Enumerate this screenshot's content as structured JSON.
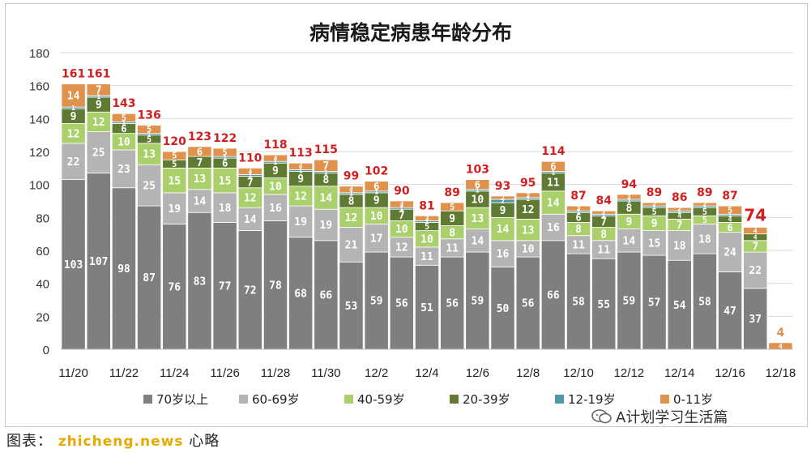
{
  "chart_data": {
    "type": "bar",
    "stacked": true,
    "title": "病情稳定病患年龄分布",
    "xlabel": "",
    "ylabel": "",
    "ylim": [
      0,
      180
    ],
    "yticks": [
      0,
      20,
      40,
      60,
      80,
      100,
      120,
      140,
      160,
      180
    ],
    "grid": true,
    "legend_position": "bottom",
    "highlight_last_total_color": "#d11f1f",
    "categories": [
      "11/20",
      "11/21",
      "11/22",
      "11/23",
      "11/24",
      "11/25",
      "11/26",
      "11/27",
      "11/28",
      "11/29",
      "11/30",
      "12/1",
      "12/2",
      "12/3",
      "12/4",
      "12/5",
      "12/6",
      "12/7",
      "12/8",
      "12/9",
      "12/10",
      "12/11",
      "12/12",
      "12/13",
      "12/14",
      "12/15",
      "12/16",
      "12/17",
      "12/18"
    ],
    "xtick_labels": [
      "11/20",
      "11/22",
      "11/24",
      "11/26",
      "11/28",
      "11/30",
      "12/2",
      "12/4",
      "12/6",
      "12/8",
      "12/10",
      "12/12",
      "12/14",
      "12/16",
      "12/18"
    ],
    "series": [
      {
        "name": "70岁以上",
        "color": "#7f7f7f",
        "label_color": "#ffffff",
        "values": [
          103,
          107,
          98,
          87,
          76,
          83,
          77,
          72,
          78,
          68,
          66,
          53,
          59,
          56,
          51,
          56,
          59,
          50,
          56,
          66,
          58,
          55,
          59,
          57,
          54,
          58,
          47,
          37,
          0
        ]
      },
      {
        "name": "60-69岁",
        "color": "#b4b4b4",
        "label_color": "#ffffff",
        "values": [
          22,
          25,
          23,
          25,
          19,
          14,
          18,
          14,
          16,
          19,
          19,
          21,
          17,
          12,
          11,
          11,
          14,
          16,
          10,
          16,
          11,
          11,
          14,
          15,
          18,
          18,
          24,
          22,
          0
        ]
      },
      {
        "name": "40-59岁",
        "color": "#a9d06b",
        "label_color": "#ffffff",
        "values": [
          12,
          12,
          10,
          13,
          15,
          13,
          15,
          12,
          10,
          12,
          14,
          12,
          10,
          10,
          10,
          8,
          13,
          14,
          13,
          14,
          8,
          8,
          9,
          9,
          7,
          5,
          6,
          7,
          0
        ]
      },
      {
        "name": "20-39岁",
        "color": "#5f7a32",
        "label_color": "#ffffff",
        "values": [
          9,
          9,
          6,
          5,
          5,
          7,
          6,
          7,
          9,
          9,
          8,
          8,
          9,
          7,
          5,
          9,
          10,
          9,
          12,
          11,
          6,
          7,
          8,
          5,
          4,
          5,
          4,
          4,
          0
        ]
      },
      {
        "name": "12-19岁",
        "color": "#4e97a8",
        "label_color": "#ffffff",
        "values": [
          1,
          1,
          1,
          1,
          0,
          0,
          1,
          1,
          1,
          1,
          1,
          1,
          1,
          1,
          1,
          0,
          1,
          2,
          1,
          1,
          1,
          1,
          1,
          1,
          1,
          1,
          1,
          0,
          0
        ]
      },
      {
        "name": "0-11岁",
        "color": "#e0914b",
        "label_color": "#ffffff",
        "values": [
          14,
          7,
          5,
          5,
          5,
          6,
          5,
          4,
          4,
          4,
          7,
          4,
          6,
          4,
          3,
          5,
          6,
          2,
          3,
          6,
          3,
          2,
          3,
          2,
          2,
          2,
          5,
          4,
          4
        ]
      }
    ],
    "totals": [
      161,
      161,
      143,
      136,
      120,
      123,
      122,
      110,
      118,
      113,
      115,
      99,
      102,
      90,
      81,
      89,
      103,
      93,
      95,
      114,
      87,
      84,
      94,
      89,
      86,
      89,
      87,
      74,
      4
    ]
  },
  "footer": {
    "caption": "图表：",
    "watermark": "zhicheng.news",
    "source_suffix": "心略",
    "wechat_account": "A计划学习生活篇"
  }
}
